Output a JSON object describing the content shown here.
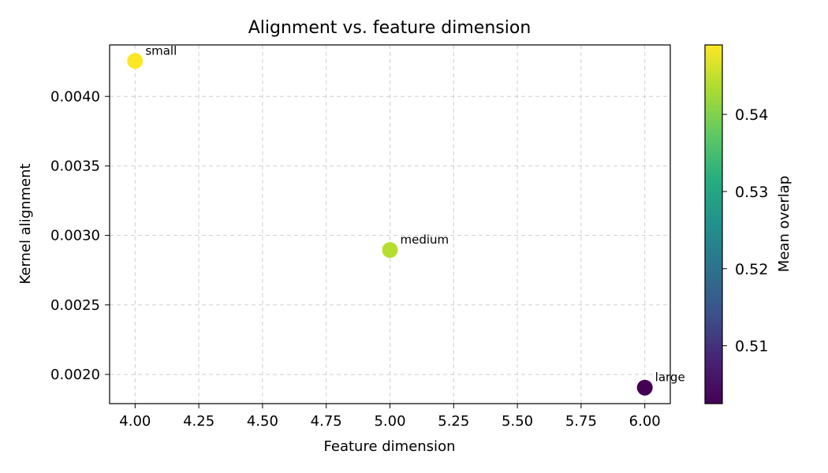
{
  "chart_data": {
    "type": "scatter",
    "title": "Alignment vs. feature dimension",
    "xlabel": "Feature dimension",
    "ylabel": "Kernel alignment",
    "xlim": [
      3.9,
      6.1
    ],
    "ylim": [
      0.00179,
      0.00437
    ],
    "xticks": [
      "4.00",
      "4.25",
      "4.50",
      "4.75",
      "5.00",
      "5.25",
      "5.50",
      "5.75",
      "6.00"
    ],
    "yticks": [
      "0.0020",
      "0.0025",
      "0.0030",
      "0.0035",
      "0.0040"
    ],
    "grid": true,
    "points": [
      {
        "label": "small",
        "x": 4.0,
        "y": 0.004255,
        "c": 0.549
      },
      {
        "label": "medium",
        "x": 5.0,
        "y": 0.002895,
        "c": 0.544
      },
      {
        "label": "large",
        "x": 6.0,
        "y": 0.001905,
        "c": 0.5025
      }
    ],
    "colorbar": {
      "label": "Mean overlap",
      "colormap": "viridis",
      "range": [
        0.5025,
        0.549
      ],
      "ticks": [
        "0.51",
        "0.52",
        "0.53",
        "0.54"
      ]
    }
  }
}
